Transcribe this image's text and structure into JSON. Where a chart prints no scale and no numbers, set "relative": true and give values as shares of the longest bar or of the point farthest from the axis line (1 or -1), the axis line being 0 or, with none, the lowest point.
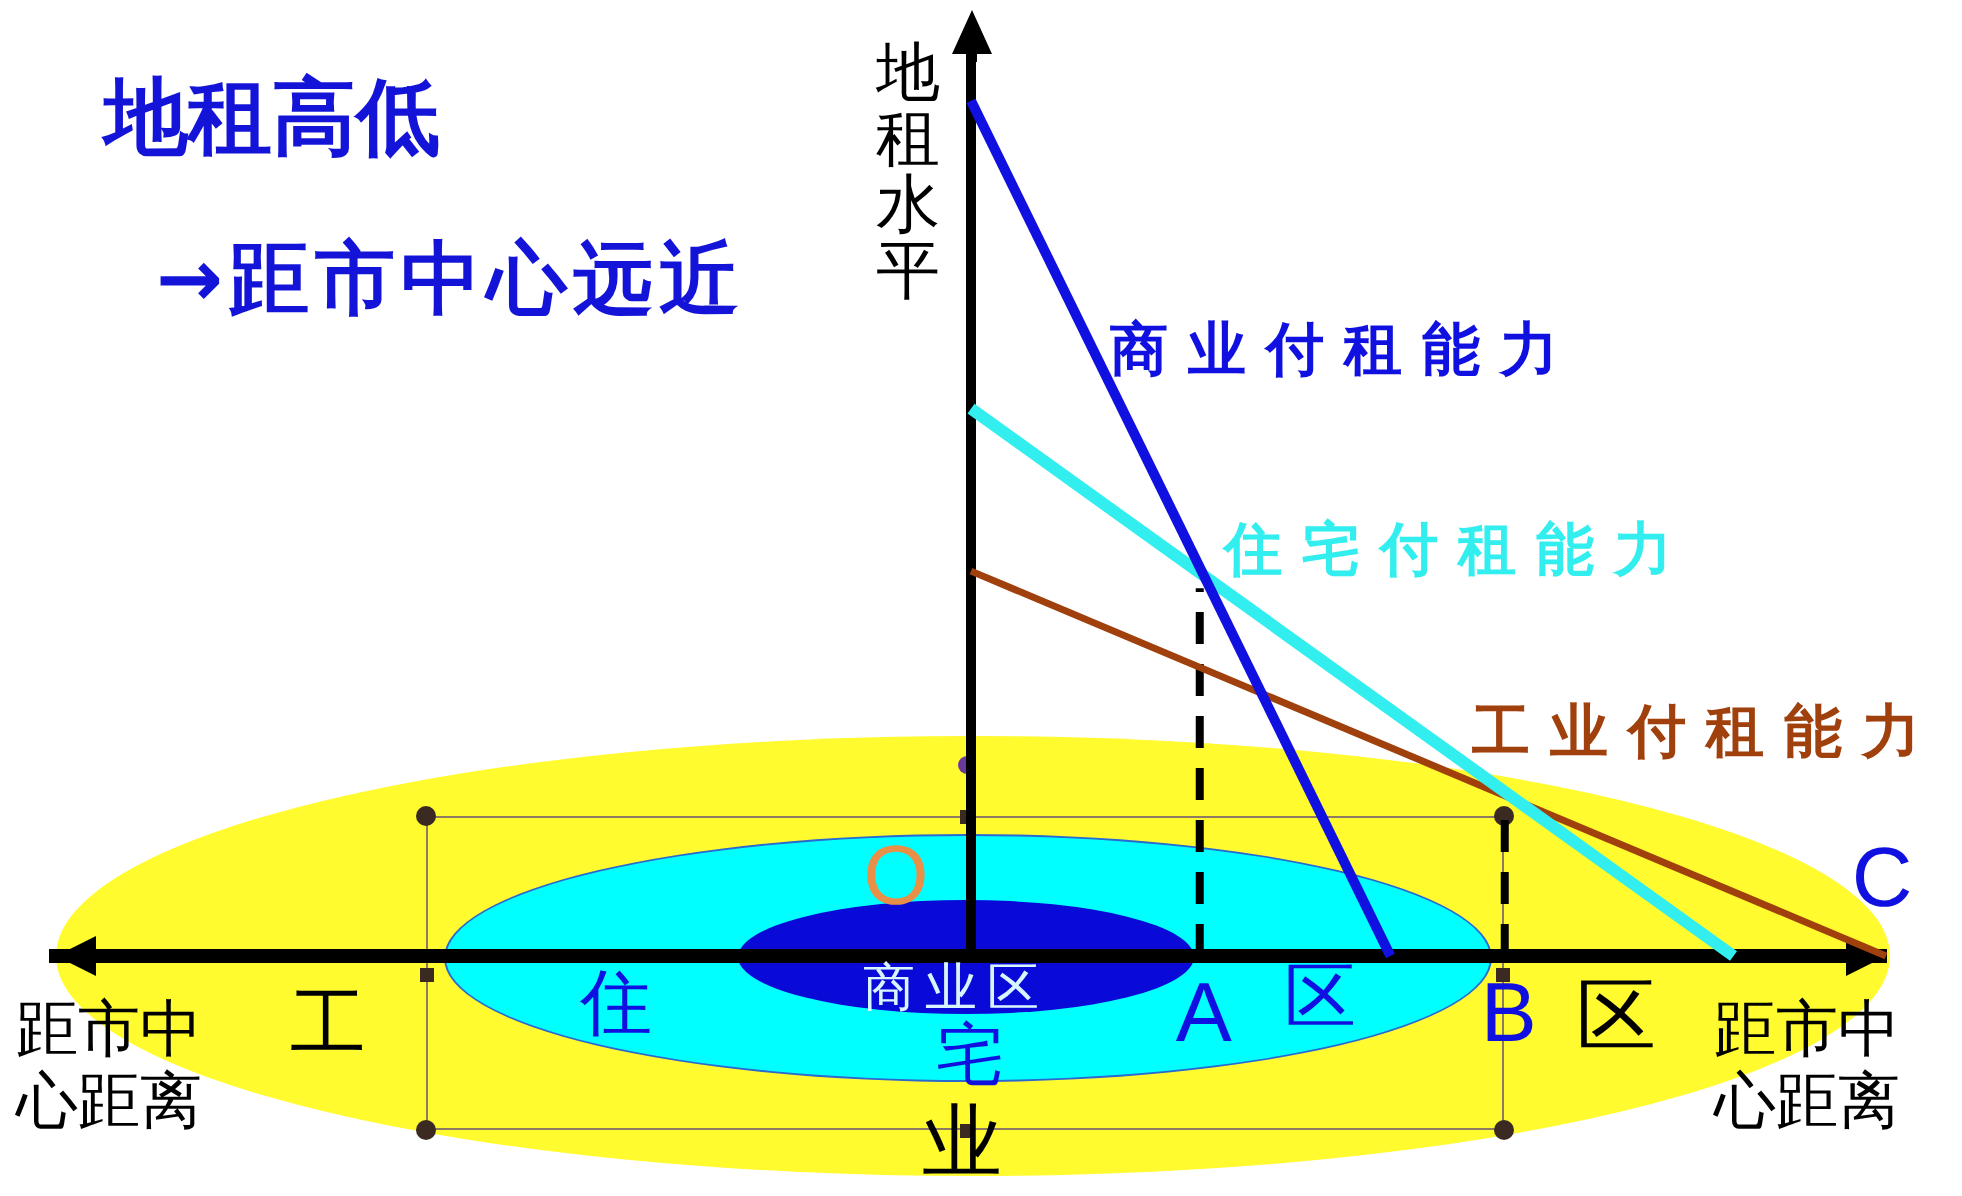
{
  "chart_data": {
    "type": "line",
    "title": "地租高低",
    "subtitle": "→距市中心远近",
    "xlabel": "距市中心距离",
    "ylabel": "地租水平",
    "relative": true,
    "categories": [
      null,
      null,
      null,
      null,
      null,
      null,
      null,
      null,
      null,
      null,
      null,
      null,
      null,
      null,
      null,
      null,
      null,
      null,
      null,
      null,
      null,
      null,
      null,
      null,
      null,
      null,
      null,
      null,
      null,
      null,
      "A",
      null,
      null,
      null,
      null,
      null,
      null,
      null,
      "B",
      null,
      null,
      null,
      null,
      null,
      null,
      null,
      null,
      null,
      null
    ],
    "grid": false,
    "legend": false,
    "marker": "none",
    "tick_labels": "x",
    "series": [
      {
        "name": "商业付租能力",
        "color": "#1010e0",
        "values": [
          null,
          null,
          null,
          null,
          null,
          null,
          null,
          null,
          null,
          null,
          null,
          null,
          null,
          null,
          null,
          null,
          null,
          null,
          null,
          null,
          null,
          null,
          null,
          null,
          1,
          null,
          null,
          null,
          null,
          null,
          null,
          null,
          null,
          null,
          null,
          0,
          null,
          null,
          null,
          null,
          null,
          null,
          null,
          null,
          null,
          null,
          null,
          null,
          null
        ]
      },
      {
        "name": "住宅付租能力",
        "color": "#33eeee",
        "values": [
          null,
          null,
          null,
          null,
          null,
          null,
          null,
          null,
          null,
          null,
          null,
          null,
          null,
          null,
          null,
          null,
          null,
          null,
          null,
          null,
          null,
          null,
          null,
          null,
          0.64,
          null,
          null,
          null,
          null,
          null,
          null,
          null,
          null,
          null,
          null,
          null,
          null,
          null,
          null,
          null,
          null,
          null,
          null,
          null,
          0,
          null,
          null,
          null,
          null
        ]
      },
      {
        "name": "工业付租能力",
        "color": "#a0400c",
        "values": [
          null,
          null,
          null,
          null,
          null,
          null,
          null,
          null,
          null,
          null,
          null,
          null,
          null,
          null,
          null,
          null,
          null,
          null,
          null,
          null,
          null,
          null,
          null,
          null,
          0.45,
          null,
          null,
          null,
          null,
          null,
          null,
          null,
          null,
          null,
          null,
          null,
          null,
          null,
          null,
          null,
          null,
          null,
          null,
          null,
          null,
          null,
          null,
          null,
          0
        ]
      },
      {
        "color": "#000000",
        "x": [
          "A",
          "A"
        ],
        "values": [
          0,
          0.43
        ],
        "line_style": "dashed"
      },
      {
        "color": "#000000",
        "x": [
          "B",
          "B"
        ],
        "values": [
          0,
          0.18
        ],
        "line_style": "dashed"
      }
    ],
    "annotations": [
      "商业区",
      "住",
      "宅",
      "区",
      "工",
      "业",
      "区",
      "O",
      "C"
    ]
  }
}
